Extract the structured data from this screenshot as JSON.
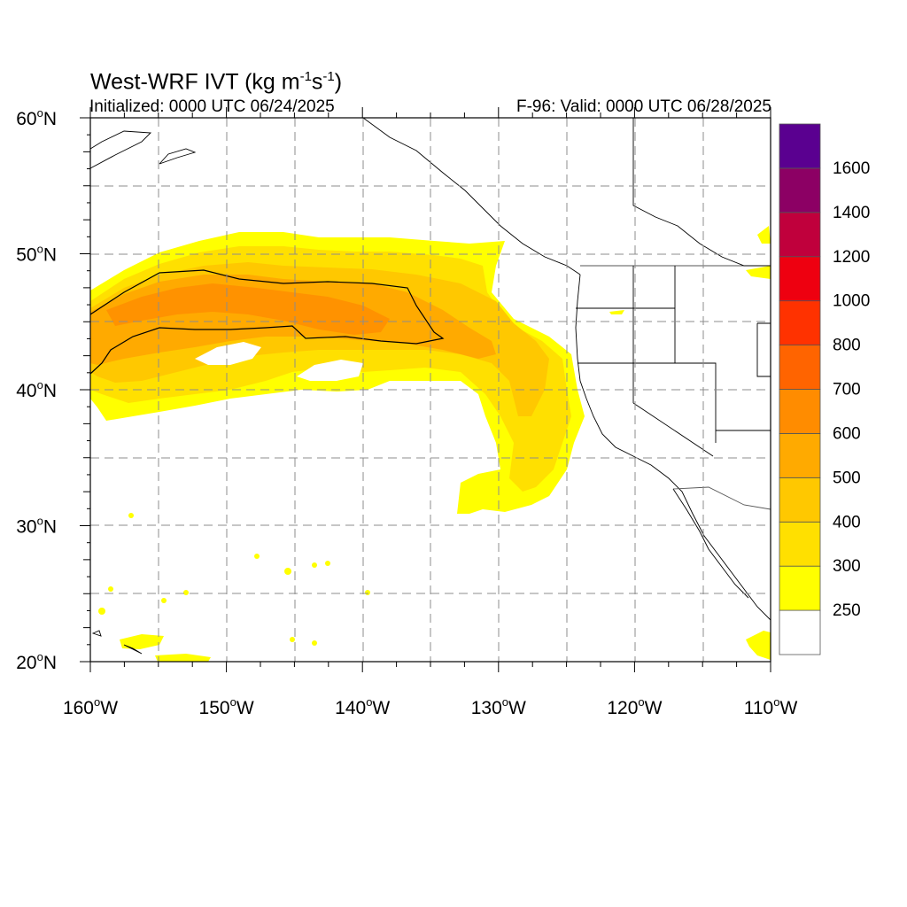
{
  "header": {
    "title_main": "West-WRF IVT (kg m",
    "title_exp1": "-1",
    "title_mid": "s",
    "title_exp2": "-1",
    "title_end": ")",
    "initialized": "Initialized: 0000 UTC 06/24/2025",
    "valid": "F-96: Valid: 0000 UTC 06/28/2025"
  },
  "map": {
    "lon_range": [
      -160,
      -110
    ],
    "lat_range": [
      20,
      60
    ],
    "lon_ticks": [
      {
        "value": -160,
        "label": "160",
        "hemi": "W"
      },
      {
        "value": -150,
        "label": "150",
        "hemi": "W"
      },
      {
        "value": -140,
        "label": "140",
        "hemi": "W"
      },
      {
        "value": -130,
        "label": "130",
        "hemi": "W"
      },
      {
        "value": -120,
        "label": "120",
        "hemi": "W"
      },
      {
        "value": -110,
        "label": "110",
        "hemi": "W"
      }
    ],
    "lat_ticks": [
      {
        "value": 60,
        "label": "60",
        "hemi": "N"
      },
      {
        "value": 50,
        "label": "50",
        "hemi": "N"
      },
      {
        "value": 40,
        "label": "40",
        "hemi": "N"
      },
      {
        "value": 30,
        "label": "30",
        "hemi": "N"
      },
      {
        "value": 20,
        "label": "20",
        "hemi": "N"
      }
    ],
    "degree_symbol": "o",
    "gridlines": "dashed gray every 5 degrees"
  },
  "colorbar": {
    "levels": [
      "250",
      "300",
      "400",
      "500",
      "600",
      "700",
      "800",
      "1000",
      "1200",
      "1400",
      "1600"
    ],
    "colors": [
      "#ffffff",
      "#ffff00",
      "#ffe000",
      "#ffc800",
      "#ffaa00",
      "#ff8c00",
      "#ff6400",
      "#ff3200",
      "#ee0010",
      "#c0003c",
      "#8c0064",
      "#5a0090"
    ]
  },
  "colors": {
    "ivt_250": "#ffff00",
    "ivt_300": "#ffe000",
    "ivt_400": "#ffc800",
    "ivt_500": "#ffaa00",
    "ivt_600": "#ff8c00",
    "coast": "#000000",
    "grid": "#8c8c8c"
  }
}
